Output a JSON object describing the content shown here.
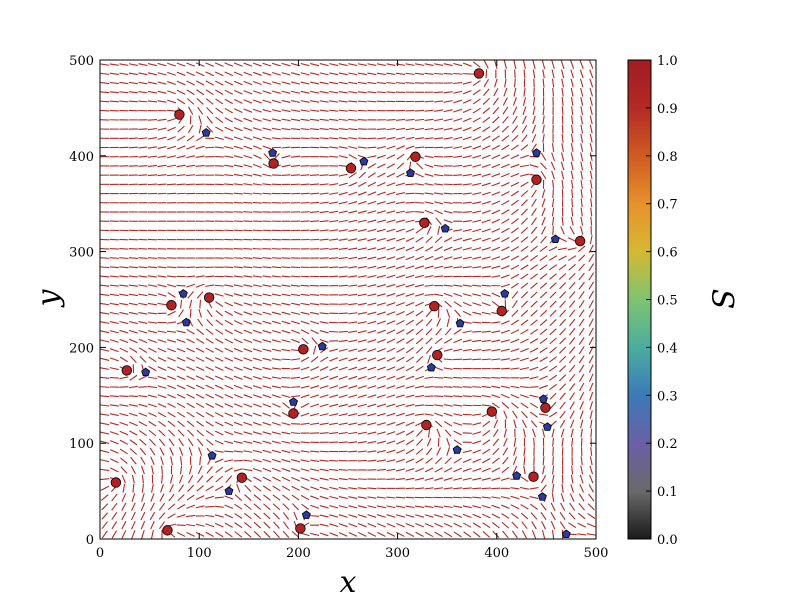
{
  "chart_data": {
    "type": "scatter",
    "title": "",
    "xlabel": "x",
    "ylabel": "y",
    "xlim": [
      0,
      500
    ],
    "ylim": [
      0,
      500
    ],
    "x_ticks": [
      "0",
      "100",
      "200",
      "300",
      "400",
      "500"
    ],
    "y_ticks": [
      "0",
      "100",
      "200",
      "300",
      "400",
      "500"
    ],
    "grid": false,
    "background_field": "director field line segments (nematic order), colored by S ≈ 0.9",
    "colorbar": {
      "label": "S",
      "range": [
        0.0,
        1.0
      ],
      "ticks": [
        "0.0",
        "0.1",
        "0.2",
        "0.3",
        "0.4",
        "0.5",
        "0.6",
        "0.7",
        "0.8",
        "0.9",
        "1.0"
      ],
      "colormap": [
        "#1a1a1a",
        "#6a6a6a",
        "#6b5fa6",
        "#3b7ab8",
        "#4cad9d",
        "#7ec36f",
        "#d6b833",
        "#e6912d",
        "#d05a22",
        "#b32a25",
        "#a01d22"
      ]
    },
    "series": [
      {
        "color": "#b22222",
        "marker": "circle",
        "points": [
          [
            80,
            443
          ],
          [
            175,
            392
          ],
          [
            253,
            387
          ],
          [
            318,
            399
          ],
          [
            382,
            486
          ],
          [
            440,
            375
          ],
          [
            327,
            330
          ],
          [
            484,
            311
          ],
          [
            72,
            244
          ],
          [
            110,
            252
          ],
          [
            337,
            243
          ],
          [
            405,
            238
          ],
          [
            27,
            176
          ],
          [
            205,
            198
          ],
          [
            340,
            192
          ],
          [
            195,
            131
          ],
          [
            329,
            119
          ],
          [
            395,
            133
          ],
          [
            16,
            59
          ],
          [
            143,
            64
          ],
          [
            68,
            9
          ],
          [
            202,
            11
          ],
          [
            437,
            65
          ],
          [
            449,
            137
          ]
        ]
      },
      {
        "color": "#2b3a9e",
        "marker": "pentagon",
        "points": [
          [
            107,
            424
          ],
          [
            174,
            403
          ],
          [
            266,
            394
          ],
          [
            313,
            382
          ],
          [
            440,
            403
          ],
          [
            348,
            324
          ],
          [
            459,
            313
          ],
          [
            84,
            256
          ],
          [
            87,
            226
          ],
          [
            363,
            225
          ],
          [
            408,
            256
          ],
          [
            224,
            201
          ],
          [
            46,
            174
          ],
          [
            334,
            179
          ],
          [
            195,
            143
          ],
          [
            360,
            93
          ],
          [
            447,
            146
          ],
          [
            451,
            117
          ],
          [
            113,
            87
          ],
          [
            130,
            50
          ],
          [
            208,
            25
          ],
          [
            420,
            66
          ],
          [
            446,
            44
          ],
          [
            470,
            5
          ]
        ]
      }
    ]
  }
}
